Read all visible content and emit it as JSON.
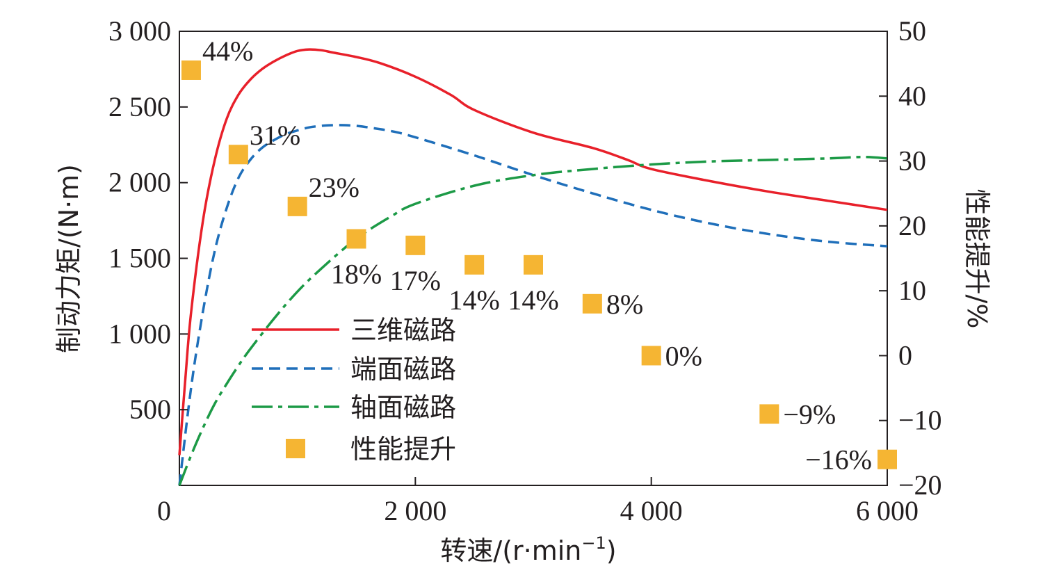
{
  "chart_data": {
    "type": "line",
    "xlabel": "转速/(r·min",
    "xlabel_sup": "−1",
    "xlabel_tail": ")",
    "ylabel": "制动力矩/(N·m)",
    "y2label": "性能提升/%",
    "xlim": [
      0,
      6000
    ],
    "ylim": [
      0,
      3000
    ],
    "y2lim": [
      -20,
      50
    ],
    "x_ticks": [
      {
        "value": 0,
        "label": "0"
      },
      {
        "value": 2000,
        "label": "2 000"
      },
      {
        "value": 4000,
        "label": "4 000"
      },
      {
        "value": 6000,
        "label": "6 000"
      }
    ],
    "y_ticks": [
      {
        "value": 500,
        "label": "500"
      },
      {
        "value": 1000,
        "label": "1 000"
      },
      {
        "value": 1500,
        "label": "1 500"
      },
      {
        "value": 2000,
        "label": "2 000"
      },
      {
        "value": 2500,
        "label": "2 500"
      },
      {
        "value": 3000,
        "label": "3 000"
      }
    ],
    "y2_ticks": [
      {
        "value": -20,
        "label": "−20"
      },
      {
        "value": -10,
        "label": "−10"
      },
      {
        "value": 0,
        "label": "0"
      },
      {
        "value": 10,
        "label": "10"
      },
      {
        "value": 20,
        "label": "20"
      },
      {
        "value": 30,
        "label": "30"
      },
      {
        "value": 40,
        "label": "40"
      },
      {
        "value": 50,
        "label": "50"
      }
    ],
    "series": [
      {
        "name": "三维磁路",
        "color": "#e8202a",
        "dash": "solid",
        "x": [
          0,
          50,
          100,
          200,
          300,
          400,
          500,
          600,
          700,
          800,
          900,
          1000,
          1100,
          1200,
          1300,
          1500,
          1700,
          2000,
          2300,
          2500,
          3000,
          3500,
          3800,
          4000,
          4500,
          5000,
          5500,
          6000
        ],
        "y": [
          200,
          700,
          1150,
          1750,
          2150,
          2420,
          2580,
          2680,
          2750,
          2800,
          2840,
          2870,
          2880,
          2875,
          2860,
          2830,
          2790,
          2700,
          2580,
          2480,
          2330,
          2230,
          2150,
          2090,
          2010,
          1940,
          1880,
          1820
        ]
      },
      {
        "name": "端面磁路",
        "color": "#1f6fba",
        "dash": "dashed",
        "x": [
          0,
          100,
          200,
          300,
          400,
          500,
          600,
          700,
          800,
          900,
          1000,
          1100,
          1200,
          1300,
          1400,
          1500,
          1600,
          1800,
          2000,
          2500,
          3000,
          3500,
          4000,
          4500,
          5000,
          5500,
          6000
        ],
        "y": [
          0,
          650,
          1150,
          1550,
          1830,
          2030,
          2150,
          2230,
          2280,
          2320,
          2345,
          2365,
          2375,
          2380,
          2380,
          2375,
          2365,
          2340,
          2300,
          2180,
          2050,
          1930,
          1820,
          1730,
          1660,
          1610,
          1580
        ]
      },
      {
        "name": "轴面磁路",
        "color": "#1c9a46",
        "dash": "dashdot",
        "x": [
          0,
          100,
          200,
          300,
          400,
          500,
          600,
          800,
          1000,
          1200,
          1500,
          1800,
          2000,
          2500,
          3000,
          3500,
          4000,
          4500,
          5000,
          5500,
          5800,
          6000
        ],
        "y": [
          0,
          200,
          380,
          540,
          670,
          790,
          900,
          1100,
          1280,
          1430,
          1630,
          1780,
          1860,
          1980,
          2050,
          2090,
          2120,
          2140,
          2150,
          2160,
          2170,
          2160
        ]
      }
    ],
    "improvement": {
      "name": "性能提升",
      "color": "#f5b533",
      "points": [
        {
          "x": 100,
          "y": 44,
          "label": "44%",
          "label_pos": "upper-right"
        },
        {
          "x": 500,
          "y": 31,
          "label": "31%",
          "label_pos": "upper-right"
        },
        {
          "x": 1000,
          "y": 23,
          "label": "23%",
          "label_pos": "upper-right"
        },
        {
          "x": 1500,
          "y": 18,
          "label": "18%",
          "label_pos": "below"
        },
        {
          "x": 2000,
          "y": 17,
          "label": "17%",
          "label_pos": "below"
        },
        {
          "x": 2500,
          "y": 14,
          "label": "14%",
          "label_pos": "below"
        },
        {
          "x": 3000,
          "y": 14,
          "label": "14%",
          "label_pos": "below"
        },
        {
          "x": 3500,
          "y": 8,
          "label": "8%",
          "label_pos": "right"
        },
        {
          "x": 4000,
          "y": 0,
          "label": "0%",
          "label_pos": "right"
        },
        {
          "x": 5000,
          "y": -9,
          "label": "−9%",
          "label_pos": "right"
        },
        {
          "x": 6000,
          "y": -16,
          "label": "−16%",
          "label_pos": "left"
        }
      ]
    },
    "legend": {
      "placement": "center-left",
      "entries": [
        "三维磁路",
        "端面磁路",
        "轴面磁路",
        "性能提升"
      ]
    }
  }
}
